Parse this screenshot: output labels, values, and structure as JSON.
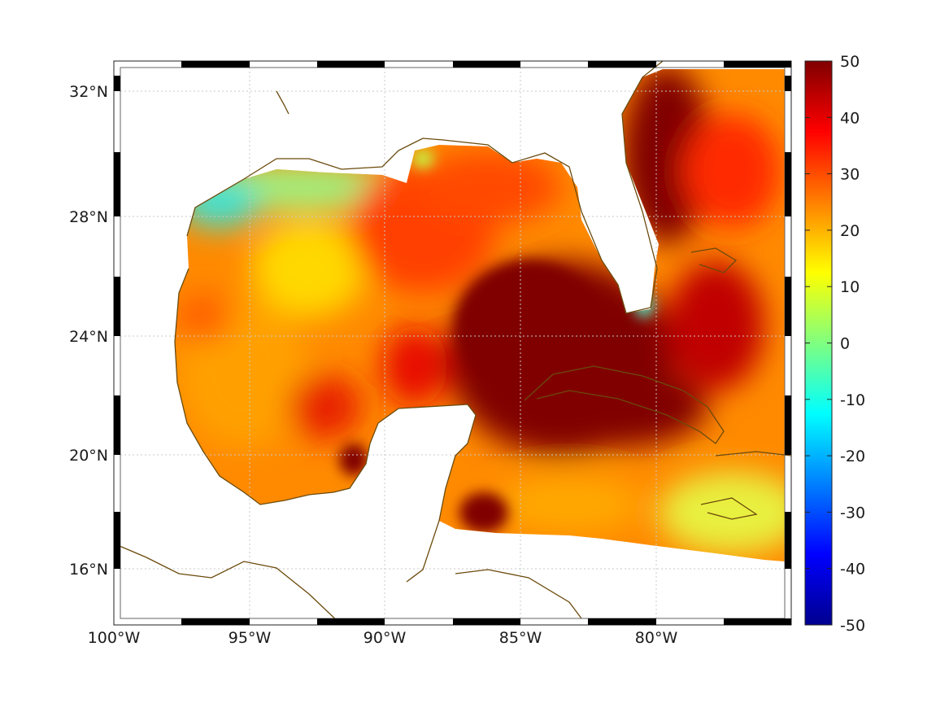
{
  "map": {
    "type": "heatmap",
    "region": "Gulf of Mexico and Caribbean",
    "x_ticks": [
      "100°W",
      "95°W",
      "90°W",
      "85°W",
      "80°W"
    ],
    "x_tick_values": [
      -100,
      -95,
      -90,
      -85,
      -80
    ],
    "y_ticks": [
      "32°N",
      "28°N",
      "24°N",
      "20°N",
      "16°N"
    ],
    "y_tick_values": [
      32,
      28,
      24,
      20,
      16
    ],
    "lon_range": [
      -100,
      -75
    ],
    "lat_range": [
      14,
      33
    ],
    "grid": true
  },
  "colorbar": {
    "colormap": "jet",
    "range": [
      -50,
      50
    ],
    "ticks": [
      "50",
      "40",
      "30",
      "20",
      "10",
      "0",
      "-10",
      "-20",
      "-30",
      "-40",
      "-50"
    ]
  },
  "colors": {
    "coastline": "#6b4a0c",
    "max": "#800000"
  }
}
